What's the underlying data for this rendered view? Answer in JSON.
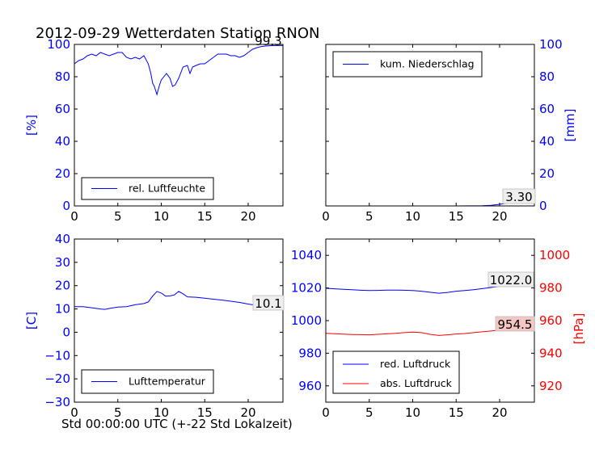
{
  "title": "2012-09-29 Wetterdaten Station RNON",
  "x_caption": "Std 00:00:00 UTC (+-22 Std Lokalzeit)",
  "colors": {
    "blue": "#0000ff",
    "red": "#ff0000",
    "frame": "#000000",
    "annot_bg_red": "#f4c7c3"
  },
  "chart_data": [
    {
      "id": "humidity",
      "type": "line",
      "xlim": [
        0,
        24
      ],
      "ylim": [
        0,
        100
      ],
      "xticks": [
        0,
        5,
        10,
        15,
        20
      ],
      "yticks": [
        0,
        20,
        40,
        60,
        80,
        100
      ],
      "ylabel": "[%]",
      "yaxis_side": "left",
      "grid": false,
      "legend": "lower-left",
      "annotation": "99.3",
      "series": [
        {
          "name": "rel. Luftfeuchte",
          "color": "#0000ff",
          "x": [
            0,
            0.5,
            1,
            1.5,
            2,
            2.5,
            3,
            3.5,
            4,
            4.5,
            5,
            5.5,
            6,
            6.5,
            7,
            7.5,
            8,
            8.5,
            8.8,
            9,
            9.2,
            9.5,
            9.8,
            10,
            10.3,
            10.6,
            11,
            11.3,
            11.6,
            12,
            12.5,
            13,
            13.3,
            13.6,
            14,
            14.5,
            15,
            15.5,
            16,
            16.5,
            17,
            17.5,
            18,
            18.5,
            19,
            19.5,
            20,
            20.5,
            21,
            21.5,
            22,
            22.5,
            23,
            23.5,
            24
          ],
          "y": [
            88,
            90,
            91,
            93,
            94,
            93,
            95,
            94,
            93,
            94,
            95,
            95,
            92,
            91,
            92,
            91,
            93,
            88,
            82,
            76,
            74,
            69,
            75,
            78,
            80,
            82,
            79,
            74,
            75,
            79,
            86,
            87,
            82,
            86,
            87,
            88,
            88,
            90,
            92,
            94,
            94,
            94,
            93,
            93,
            92,
            93,
            95,
            97,
            98,
            98.7,
            99,
            99.2,
            99.3,
            99.3,
            99.3
          ]
        }
      ]
    },
    {
      "id": "precipitation",
      "type": "line",
      "xlim": [
        0,
        24
      ],
      "ylim": [
        0,
        100
      ],
      "xticks": [
        0,
        5,
        10,
        15,
        20
      ],
      "yticks": [
        0,
        20,
        40,
        60,
        80,
        100
      ],
      "ylabel": "[mm]",
      "yaxis_side": "right",
      "grid": false,
      "legend": "upper-left",
      "annotation": "3.30",
      "series": [
        {
          "name": "kum. Niederschlag",
          "color": "#0000ff",
          "x": [
            0,
            5,
            10,
            15,
            18,
            19,
            20,
            21,
            22,
            23,
            24
          ],
          "y": [
            0,
            0,
            0,
            0,
            0.1,
            0.4,
            1.0,
            1.8,
            2.6,
            3.1,
            3.3
          ]
        }
      ]
    },
    {
      "id": "temperature",
      "type": "line",
      "xlim": [
        0,
        24
      ],
      "ylim": [
        -30,
        40
      ],
      "xticks": [
        0,
        5,
        10,
        15,
        20
      ],
      "yticks": [
        -30,
        -20,
        -10,
        0,
        10,
        20,
        30,
        40
      ],
      "ylabel": "[C]",
      "yaxis_side": "left",
      "grid": false,
      "legend": "lower-left",
      "annotation": "10.1",
      "series": [
        {
          "name": "Lufttemperatur",
          "color": "#0000ff",
          "x": [
            0,
            1,
            2,
            3,
            3.5,
            4,
            5,
            6,
            7,
            8,
            8.5,
            9,
            9.5,
            10,
            10.5,
            11,
            11.5,
            12,
            12.5,
            13,
            14,
            15,
            16,
            17,
            18,
            19,
            20,
            21,
            22,
            23,
            24
          ],
          "y": [
            11,
            11,
            10.5,
            10,
            9.8,
            10.2,
            10.8,
            11,
            11.8,
            12.3,
            13,
            15.5,
            17.5,
            16.8,
            15.5,
            15.6,
            16,
            17.5,
            16.5,
            15.2,
            15,
            14.6,
            14.2,
            13.8,
            13.3,
            12.8,
            12.1,
            11.5,
            11,
            10.4,
            10.1
          ]
        }
      ]
    },
    {
      "id": "pressure",
      "type": "line",
      "xlim": [
        0,
        24
      ],
      "ylim": [
        950,
        1050
      ],
      "y2lim": [
        910,
        1010
      ],
      "xticks": [
        0,
        5,
        10,
        15,
        20
      ],
      "yticks": [
        960,
        980,
        1000,
        1020,
        1040
      ],
      "y2ticks": [
        920,
        940,
        960,
        980,
        1000
      ],
      "ylabel": "",
      "y2label": "[hPa]",
      "grid": false,
      "legend": "lower-left",
      "annotations": [
        "1022.0",
        "954.5"
      ],
      "series": [
        {
          "name": "red. Luftdruck",
          "color": "#0000ff",
          "axis": "left",
          "x": [
            0,
            1,
            2,
            3,
            4,
            5,
            6,
            7,
            8,
            9,
            10,
            11,
            12,
            13,
            14,
            15,
            16,
            17,
            18,
            19,
            20,
            21,
            22,
            23,
            24
          ],
          "y": [
            1019.8,
            1019.5,
            1019.2,
            1018.9,
            1018.6,
            1018.4,
            1018.5,
            1018.7,
            1018.7,
            1018.6,
            1018.4,
            1018.0,
            1017.4,
            1016.8,
            1017.3,
            1018.0,
            1018.4,
            1018.9,
            1019.6,
            1020.3,
            1021.0,
            1021.5,
            1021.8,
            1022.0,
            1022.0
          ]
        },
        {
          "name": "abs. Luftdruck",
          "color": "#ff0000",
          "axis": "right",
          "x": [
            0,
            1,
            2,
            3,
            4,
            5,
            6,
            7,
            8,
            9,
            10,
            11,
            12,
            13,
            14,
            15,
            16,
            17,
            18,
            19,
            20,
            21,
            22,
            23,
            24
          ],
          "y": [
            952.2,
            952.0,
            951.7,
            951.5,
            951.4,
            951.3,
            951.6,
            951.9,
            952.2,
            952.6,
            952.9,
            952.6,
            951.6,
            950.9,
            951.3,
            951.8,
            952.1,
            952.6,
            953.1,
            953.6,
            954.1,
            954.4,
            954.5,
            954.5,
            954.5
          ]
        }
      ]
    }
  ]
}
